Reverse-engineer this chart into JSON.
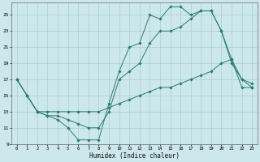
{
  "xlabel": "Humidex (Indice chaleur)",
  "bg_color": "#cce8ec",
  "grid_color": "#aacdd4",
  "line_color": "#2b7b6f",
  "xlim": [
    -0.5,
    23.5
  ],
  "ylim": [
    9,
    26.5
  ],
  "xticks": [
    0,
    1,
    2,
    3,
    4,
    5,
    6,
    7,
    8,
    9,
    10,
    11,
    12,
    13,
    14,
    15,
    16,
    17,
    18,
    19,
    20,
    21,
    22,
    23
  ],
  "yticks": [
    9,
    11,
    13,
    15,
    17,
    19,
    21,
    23,
    25
  ],
  "series": [
    {
      "x": [
        0,
        1,
        2,
        3,
        4,
        5,
        6,
        7,
        8,
        9,
        10,
        11,
        12,
        13,
        14,
        15,
        16,
        17,
        18,
        19,
        20,
        21,
        22,
        23
      ],
      "y": [
        17,
        15,
        13,
        12.5,
        12,
        11,
        9.5,
        9.5,
        9.5,
        14,
        18,
        21,
        21.5,
        25,
        24.5,
        26,
        26,
        25,
        25.5,
        25.5,
        23,
        19,
        17,
        16
      ]
    },
    {
      "x": [
        0,
        1,
        2,
        3,
        4,
        5,
        6,
        7,
        8,
        9,
        10,
        11,
        12,
        13,
        14,
        15,
        16,
        17,
        18,
        19,
        20,
        21,
        22,
        23
      ],
      "y": [
        17,
        15,
        13,
        12.5,
        12.5,
        12,
        11.5,
        11,
        11,
        13,
        17,
        18,
        19,
        21.5,
        23,
        23,
        23.5,
        24.5,
        25.5,
        25.5,
        23,
        19.5,
        17,
        16.5
      ]
    },
    {
      "x": [
        0,
        1,
        2,
        3,
        4,
        5,
        6,
        7,
        8,
        9,
        10,
        11,
        12,
        13,
        14,
        15,
        16,
        17,
        18,
        19,
        20,
        21,
        22,
        23
      ],
      "y": [
        17,
        15,
        13,
        13,
        13,
        13,
        13,
        13,
        13,
        13.5,
        14,
        14.5,
        15,
        15.5,
        16,
        16,
        16.5,
        17,
        17.5,
        18,
        19,
        19.5,
        16,
        16
      ]
    }
  ]
}
